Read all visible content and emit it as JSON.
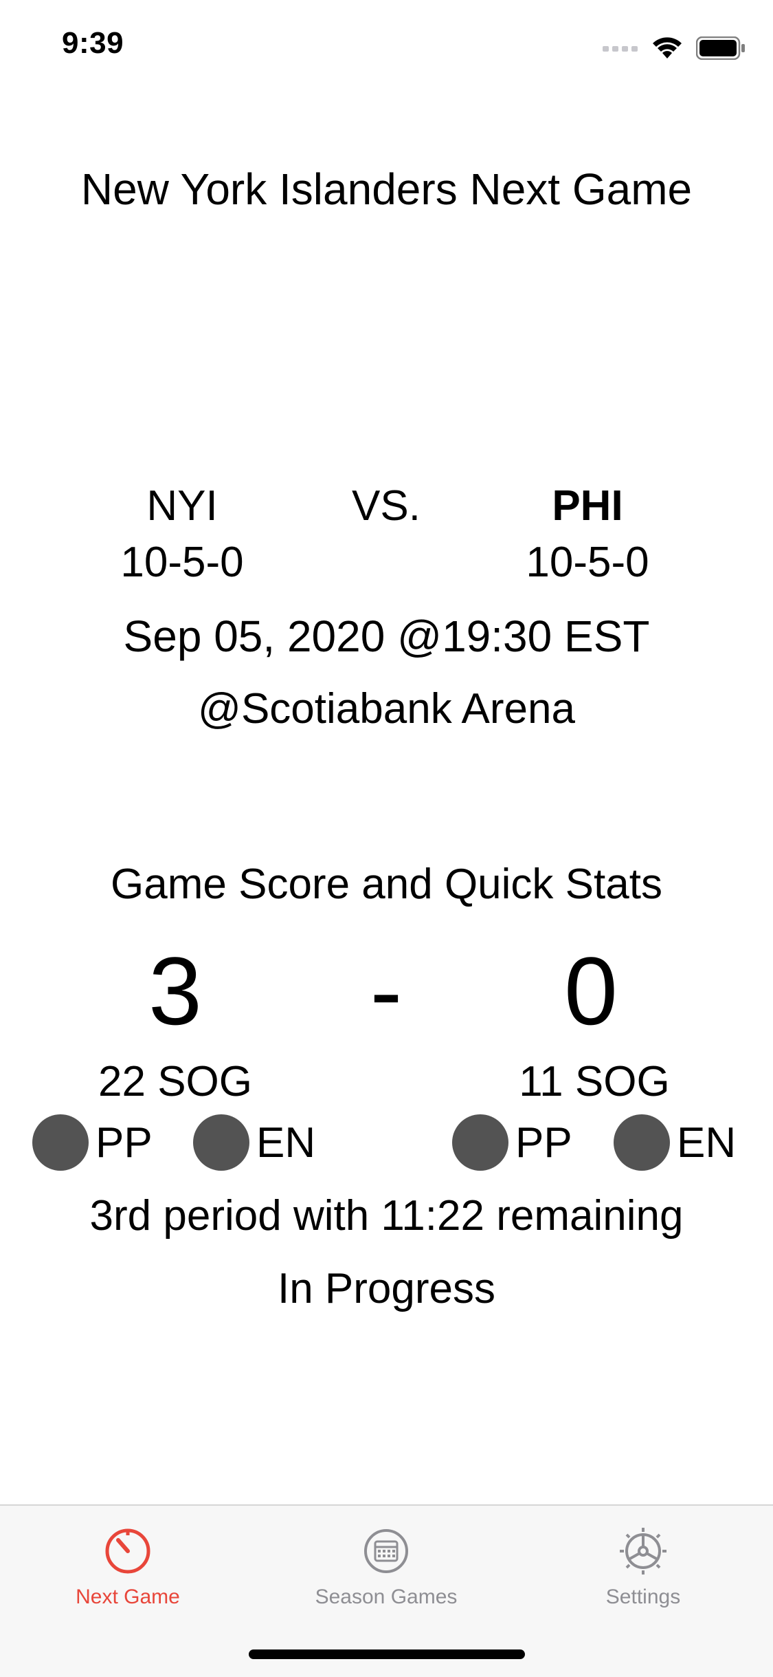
{
  "status_bar": {
    "time": "9:39"
  },
  "page": {
    "title": "New York Islanders Next Game"
  },
  "matchup": {
    "away_team": "NYI",
    "vs_label": "VS.",
    "home_team": "PHI",
    "away_record": "10-5-0",
    "home_record": "10-5-0",
    "datetime": "Sep 05, 2020 @19:30 EST",
    "venue": "@Scotiabank Arena"
  },
  "score": {
    "title": "Game Score and Quick Stats",
    "away": "3",
    "separator": "-",
    "home": "0",
    "away_sog": "22 SOG",
    "home_sog": "11 SOG",
    "pp_label": "PP",
    "en_label": "EN",
    "period_text": "3rd period with 11:22 remaining",
    "state": "In Progress"
  },
  "tabs": {
    "next_game": "Next Game",
    "season_games": "Season Games",
    "settings": "Settings",
    "active_color": "#e8463a",
    "inactive_color": "#8e8e93"
  }
}
